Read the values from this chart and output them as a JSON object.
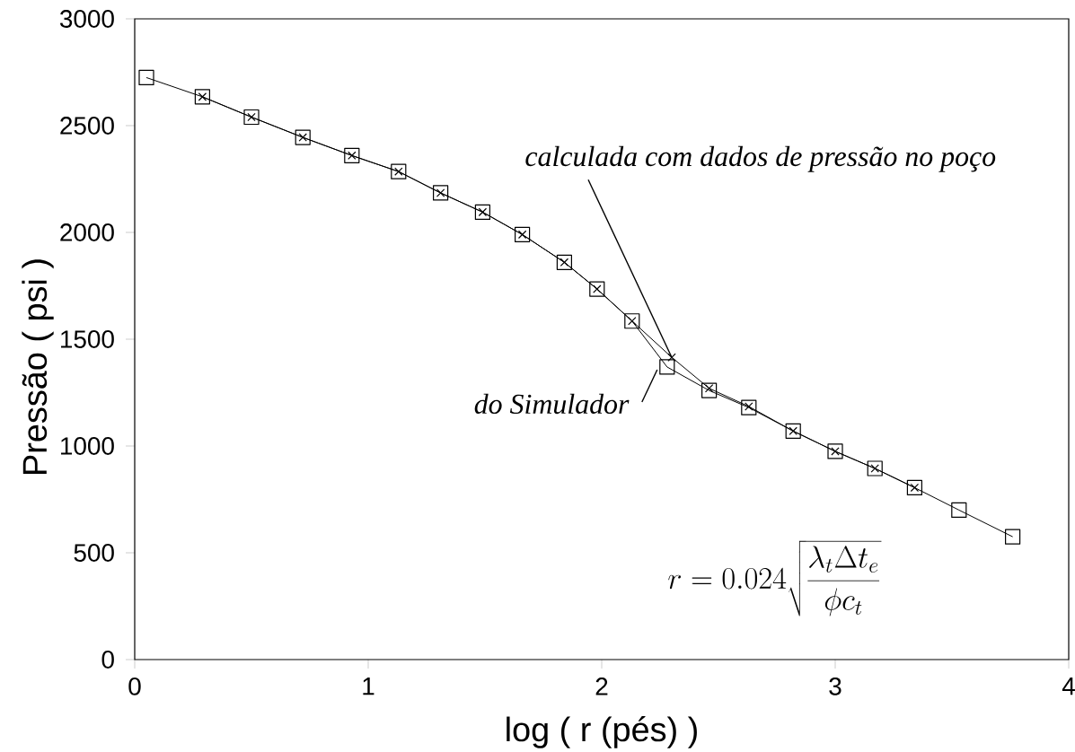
{
  "chart_data": {
    "type": "line",
    "xlabel": "log ( r (pés) )",
    "ylabel": "Pressão ( psi )",
    "xlim": [
      0,
      4
    ],
    "ylim": [
      0,
      3000
    ],
    "xticks": [
      0,
      1,
      2,
      3,
      4
    ],
    "yticks": [
      0,
      500,
      1000,
      1500,
      2000,
      2500,
      3000
    ],
    "line_style": "solid",
    "series": [
      {
        "color": "#000000",
        "marker": "square",
        "x": [
          0.05,
          0.29,
          0.5,
          0.72,
          0.93,
          1.13,
          1.31,
          1.49,
          1.66,
          1.84,
          1.98,
          2.13,
          2.28,
          2.46,
          2.63,
          2.82,
          3.0,
          3.17,
          3.34,
          3.53,
          3.76
        ],
        "values": [
          2725,
          2635,
          2540,
          2445,
          2360,
          2285,
          2185,
          2095,
          1990,
          1860,
          1735,
          1585,
          1370,
          1260,
          1180,
          1070,
          975,
          895,
          805,
          700,
          575
        ]
      },
      {
        "color": "#000000",
        "marker": "cross",
        "x": [
          0.29,
          0.5,
          0.72,
          0.93,
          1.13,
          1.31,
          1.49,
          1.66,
          1.84,
          1.98,
          2.13,
          2.3,
          2.46,
          2.63,
          2.82,
          3.0,
          3.17,
          3.34
        ],
        "values": [
          2635,
          2540,
          2445,
          2360,
          2285,
          2185,
          2095,
          1990,
          1860,
          1735,
          1585,
          1415,
          1270,
          1185,
          1070,
          975,
          895,
          805
        ]
      }
    ],
    "annotations": [
      {
        "text": "calculada com dados de pressão no poço",
        "x": 2.3,
        "y": 1415
      },
      {
        "text": "do Simulador",
        "x": 2.28,
        "y": 1370
      },
      "r = 0.024\\sqrt{\\frac{\\lambda_t\\Delta t_e}{\\phi c_t}}"
    ]
  }
}
